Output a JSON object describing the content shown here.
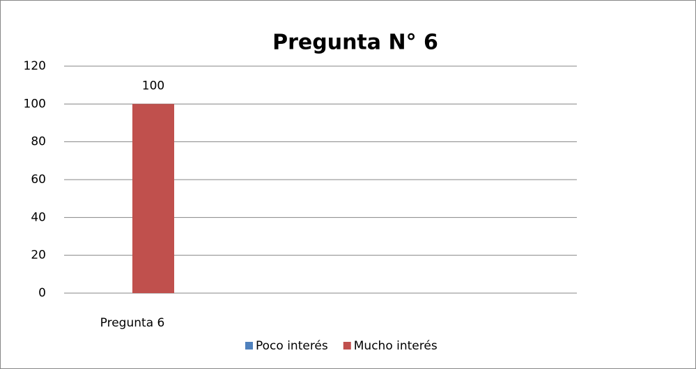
{
  "chart_data": {
    "type": "bar",
    "title": "Pregunta N° 6",
    "categories": [
      "Pregunta 6",
      null,
      null,
      null
    ],
    "series": [
      {
        "name": "Poco interés",
        "color": "#4f81bd",
        "values": [
          null,
          null,
          null,
          null
        ]
      },
      {
        "name": "Mucho interés",
        "color": "#c0504d",
        "values": [
          100,
          null,
          null,
          null
        ]
      }
    ],
    "ylim": [
      0,
      120
    ],
    "yticks": [
      0,
      20,
      40,
      60,
      80,
      100,
      120
    ],
    "grid": true,
    "legend": "bottom"
  }
}
